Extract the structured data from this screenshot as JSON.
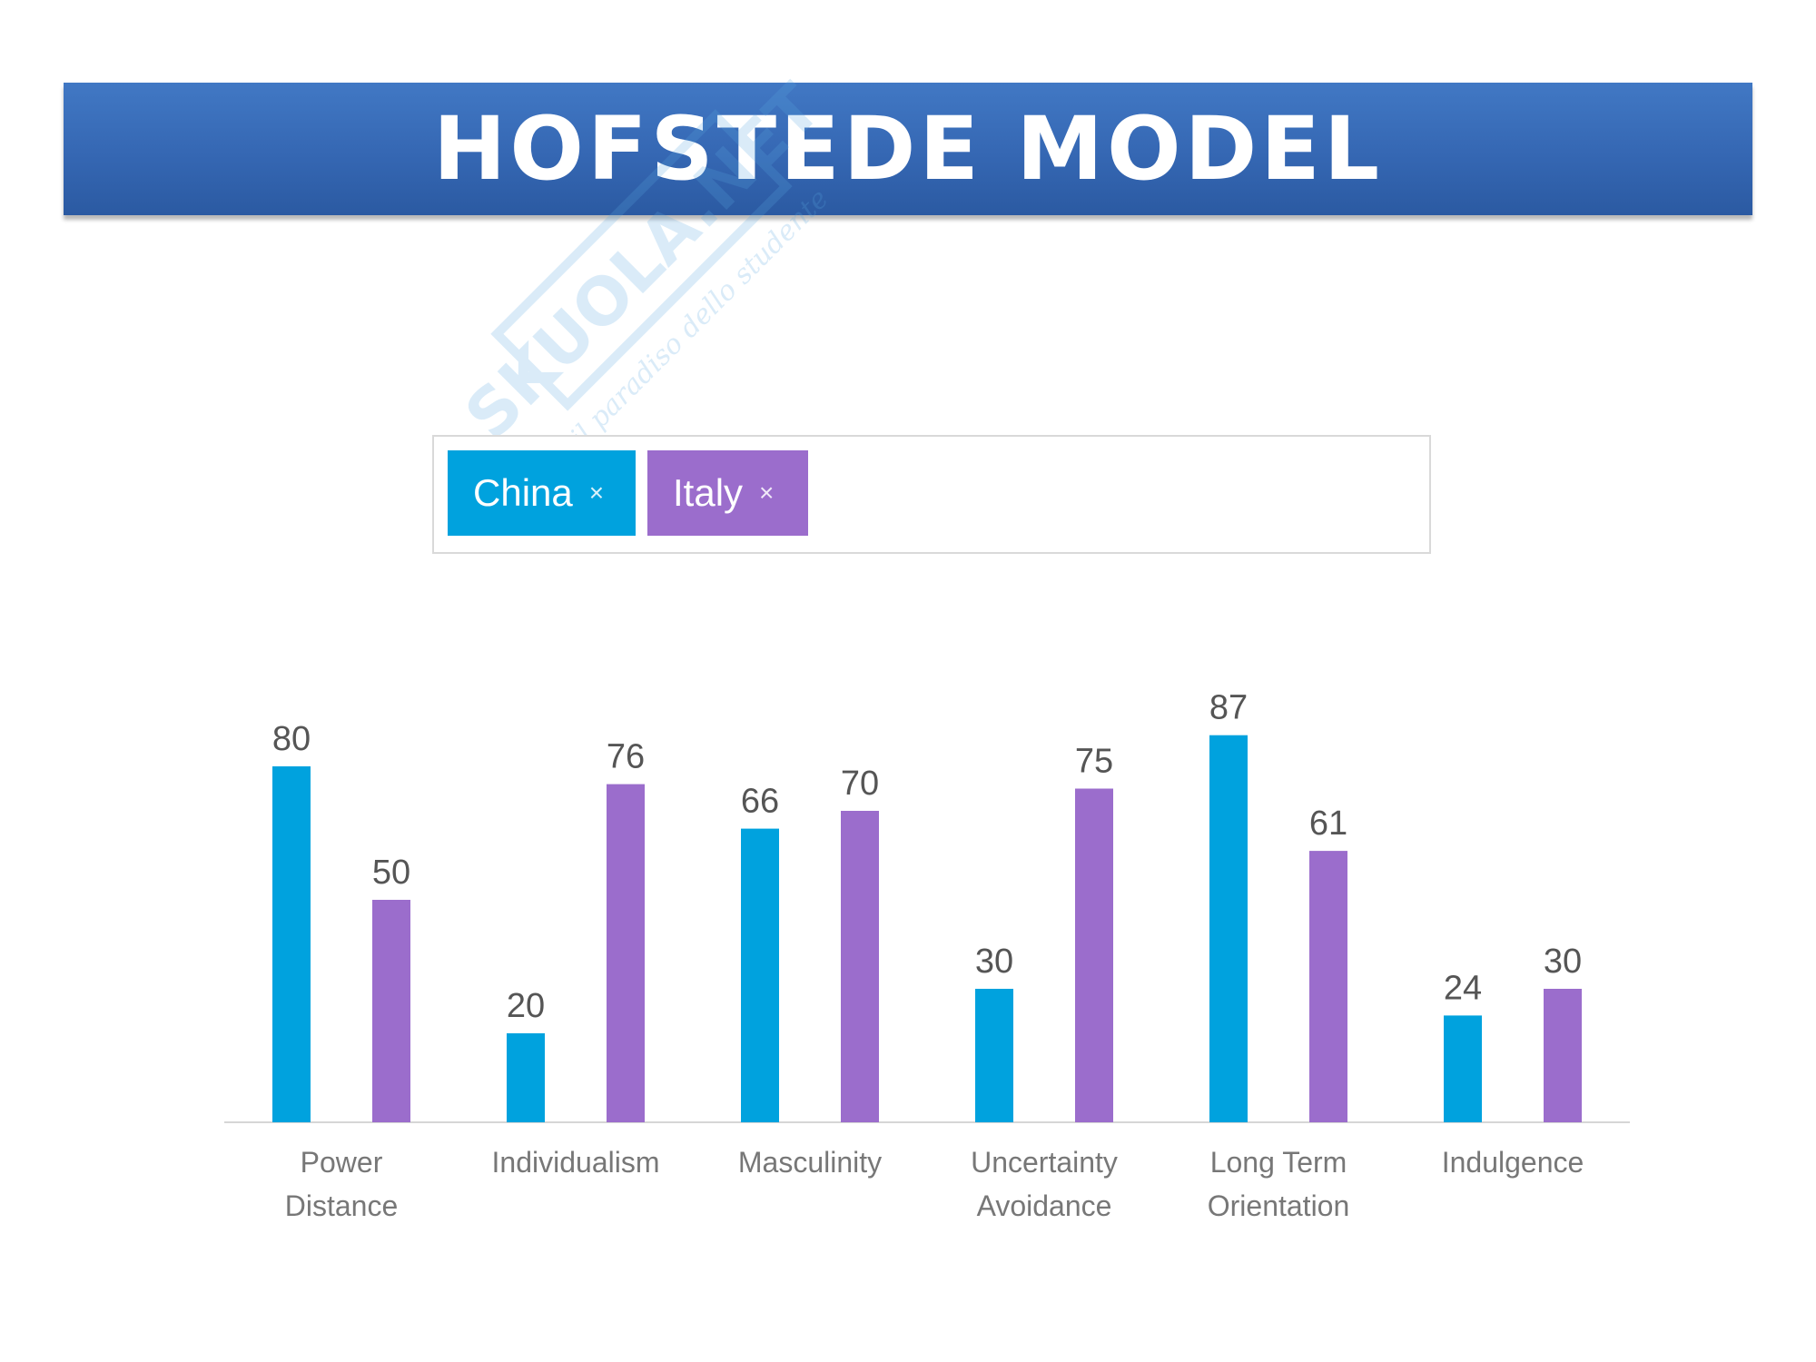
{
  "header": {
    "title": "HOFSTEDE MODEL"
  },
  "watermark": {
    "text": "SKUOLA.NET",
    "subtext": "il paradiso dello studente"
  },
  "selector": {
    "tags": [
      {
        "label": "China",
        "remove": "×",
        "color": "#00a2de"
      },
      {
        "label": "Italy",
        "remove": "×",
        "color": "#9b6dcc"
      }
    ]
  },
  "chart_data": {
    "type": "bar",
    "categories": [
      [
        "Power",
        "Distance"
      ],
      [
        "Individualism"
      ],
      [
        "Masculinity"
      ],
      [
        "Uncertainty",
        "Avoidance"
      ],
      [
        "Long Term",
        "Orientation"
      ],
      [
        "Indulgence"
      ]
    ],
    "series": [
      {
        "name": "China",
        "color": "#00a2de",
        "values": [
          80,
          20,
          66,
          30,
          87,
          24
        ]
      },
      {
        "name": "Italy",
        "color": "#9b6dcc",
        "values": [
          50,
          76,
          70,
          75,
          61,
          30
        ]
      }
    ],
    "ylim": [
      0,
      100
    ],
    "grid": false,
    "legend": "top"
  }
}
